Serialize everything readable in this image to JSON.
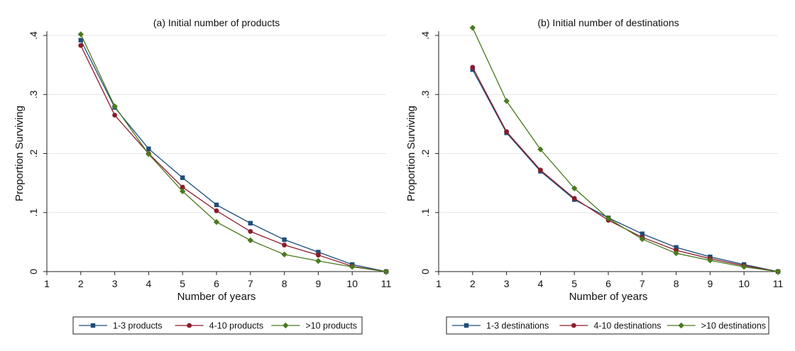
{
  "chart_data": [
    {
      "type": "line",
      "title": "(a) Initial number of products",
      "xlabel": "Number of years",
      "ylabel": "Proportion Surviving",
      "xlim": [
        1,
        11
      ],
      "ylim": [
        0,
        0.4
      ],
      "xticks": [
        1,
        2,
        3,
        4,
        5,
        6,
        7,
        8,
        9,
        10,
        11
      ],
      "yticks": [
        0,
        0.1,
        0.2,
        0.3,
        0.4
      ],
      "ytick_labels": [
        "0",
        ".1",
        ".2",
        ".3",
        ".4"
      ],
      "grid": true,
      "legend_position": "bottom",
      "x": [
        2,
        3,
        4,
        5,
        6,
        7,
        8,
        9,
        10,
        11
      ],
      "series": [
        {
          "name": "1-3 products",
          "color": "#1f4e79",
          "marker": "square",
          "values": [
            0.392,
            0.278,
            0.208,
            0.159,
            0.113,
            0.082,
            0.054,
            0.033,
            0.012,
            0.0
          ]
        },
        {
          "name": "4-10 products",
          "color": "#8b1a2b",
          "marker": "circle",
          "values": [
            0.383,
            0.265,
            0.2,
            0.143,
            0.103,
            0.068,
            0.045,
            0.028,
            0.009,
            0.0
          ]
        },
        {
          "name": ">10 products",
          "color": "#4a7a1f",
          "marker": "diamond",
          "values": [
            0.402,
            0.28,
            0.199,
            0.136,
            0.084,
            0.053,
            0.029,
            0.018,
            0.008,
            0.0
          ]
        }
      ]
    },
    {
      "type": "line",
      "title": "(b) Initial number of destinations",
      "xlabel": "Number of years",
      "ylabel": "Proportion Surviving",
      "xlim": [
        1,
        11
      ],
      "ylim": [
        0,
        0.4
      ],
      "xticks": [
        1,
        2,
        3,
        4,
        5,
        6,
        7,
        8,
        9,
        10,
        11
      ],
      "yticks": [
        0,
        0.1,
        0.2,
        0.3,
        0.4
      ],
      "ytick_labels": [
        "0",
        ".1",
        ".2",
        ".3",
        ".4"
      ],
      "grid": true,
      "legend_position": "bottom",
      "x": [
        2,
        3,
        4,
        5,
        6,
        7,
        8,
        9,
        10,
        11
      ],
      "series": [
        {
          "name": "1-3 destinations",
          "color": "#1f4e79",
          "marker": "square",
          "values": [
            0.342,
            0.235,
            0.17,
            0.122,
            0.091,
            0.064,
            0.041,
            0.025,
            0.012,
            0.0
          ]
        },
        {
          "name": "4-10 destinations",
          "color": "#8b1a2b",
          "marker": "circle",
          "values": [
            0.346,
            0.237,
            0.172,
            0.124,
            0.087,
            0.058,
            0.036,
            0.022,
            0.01,
            0.0
          ]
        },
        {
          "name": ">10 destinations",
          "color": "#4a7a1f",
          "marker": "diamond",
          "values": [
            0.413,
            0.289,
            0.207,
            0.141,
            0.09,
            0.055,
            0.031,
            0.019,
            0.008,
            0.0
          ]
        }
      ]
    }
  ]
}
